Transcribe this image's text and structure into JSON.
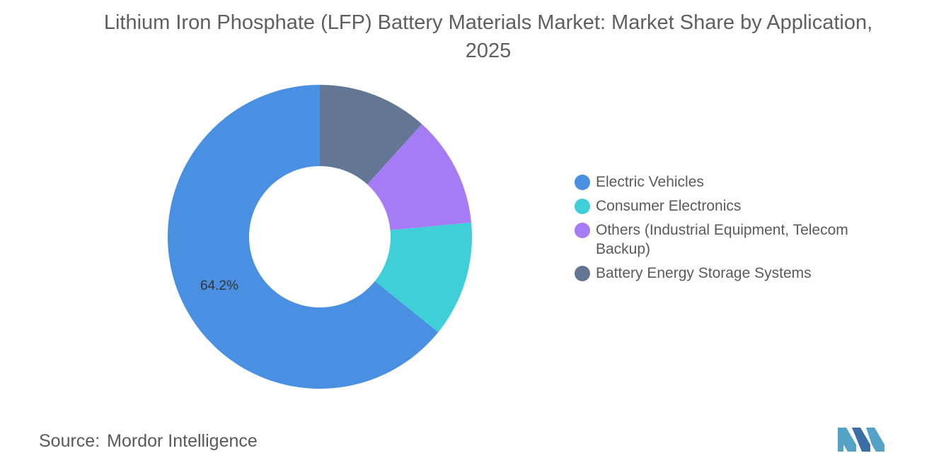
{
  "title": "Lithium Iron Phosphate (LFP) Battery Materials Market: Market Share by Application, 2025",
  "source": {
    "label": "Source:",
    "value": "Mordor Intelligence"
  },
  "chart_data": {
    "type": "pie",
    "variant": "donut",
    "title": "Lithium Iron Phosphate (LFP) Battery Materials Market: Market Share by Application, 2025",
    "legend_position": "right",
    "start": "top",
    "direction": "counterclockwise",
    "slices": [
      {
        "label": "Electric Vehicles",
        "value": 64.2,
        "color": "#4a90e2",
        "data_label": "64.2%"
      },
      {
        "label": "Consumer Electronics",
        "value": 12.3,
        "color": "#3ecfd9",
        "data_label": ""
      },
      {
        "label": "Others (Industrial Equipment, Telecom Backup)",
        "value": 11.8,
        "color": "#a57cf5",
        "data_label": ""
      },
      {
        "label": "Battery Energy Storage Systems",
        "value": 11.7,
        "color": "#637694",
        "data_label": ""
      }
    ]
  },
  "logo": {
    "colors": [
      "#54a3c6",
      "#3b6ea5"
    ]
  }
}
